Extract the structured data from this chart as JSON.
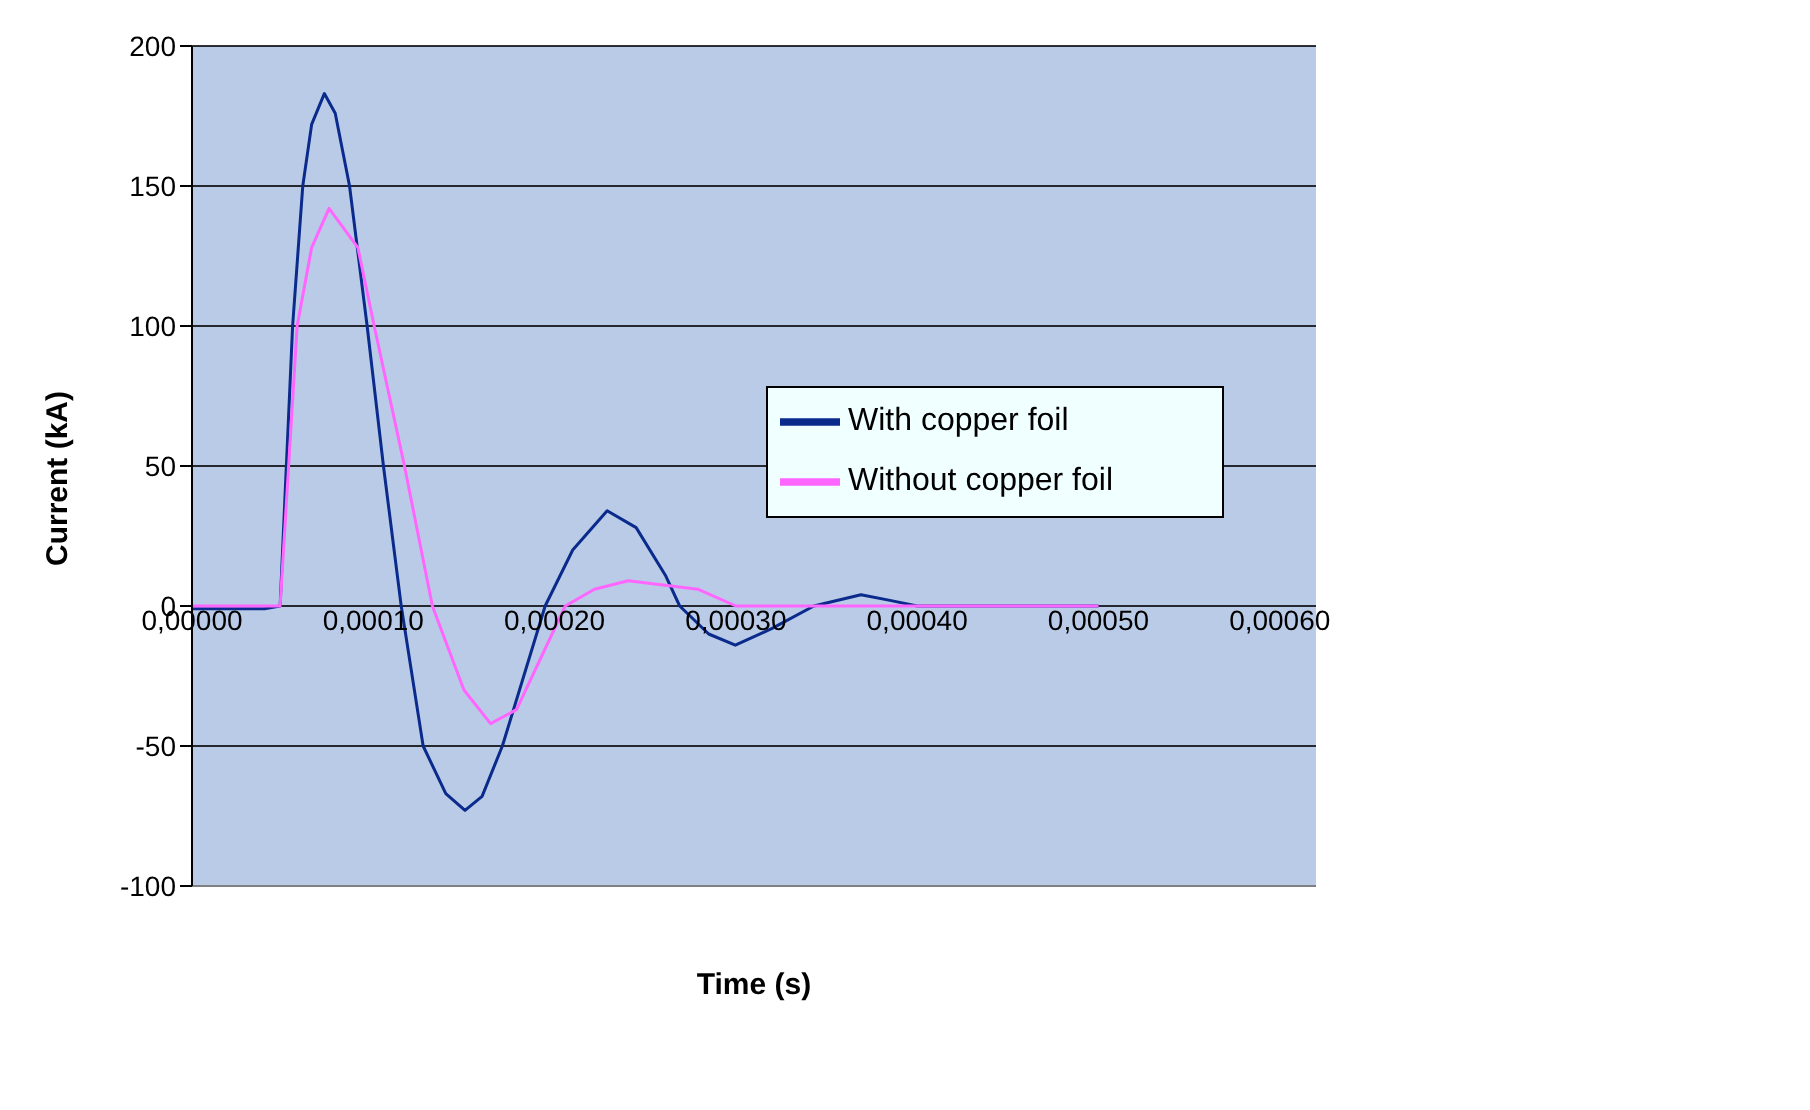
{
  "chart_data": {
    "type": "line",
    "xlabel": "Time (s)",
    "ylabel": "Current (kA)",
    "xlim": [
      0,
      0.00062
    ],
    "ylim": [
      -100,
      200
    ],
    "xticks": [
      {
        "value": 0,
        "label": "0,00000"
      },
      {
        "value": 0.0001,
        "label": "0,00010"
      },
      {
        "value": 0.0002,
        "label": "0,00020"
      },
      {
        "value": 0.0003,
        "label": "0,00030"
      },
      {
        "value": 0.0004,
        "label": "0,00040"
      },
      {
        "value": 0.0005,
        "label": "0,00050"
      },
      {
        "value": 0.0006,
        "label": "0,00060"
      }
    ],
    "yticks": [
      -100,
      -50,
      0,
      50,
      100,
      150,
      200
    ],
    "grid": "y",
    "legend": "right",
    "marker": "none",
    "line_style": "solid",
    "series": [
      {
        "name": "With copper foil",
        "color": "#0a2a8c",
        "x": [
          0,
          2e-05,
          4e-05,
          4.86e-05,
          5.55e-05,
          6.11e-05,
          6.6e-05,
          7.3e-05,
          7.9e-05,
          8.69e-05,
          9.66e-05,
          0.0001056,
          0.0001154,
          0.0001275,
          0.00014,
          0.0001506,
          0.00016,
          0.0001712,
          0.0001948,
          0.00021,
          0.000229,
          0.000245,
          0.0002611,
          0.000269,
          0.000285,
          0.0002997,
          0.00032,
          0.000343,
          0.000369,
          0.000385,
          0.0004,
          0.00045,
          0.0005
        ],
        "values": [
          -1,
          -1,
          -1,
          0,
          100,
          150,
          172,
          183,
          176,
          150,
          100,
          50,
          0,
          -50,
          -67,
          -73,
          -68,
          -50,
          0,
          20,
          34,
          28,
          11,
          0,
          -10,
          -14,
          -8,
          0,
          4,
          2,
          0,
          0,
          0
        ]
      },
      {
        "name": "Without copper foil",
        "color": "#ff66ff",
        "x": [
          0,
          2e-05,
          4e-05,
          4.86e-05,
          5.8e-05,
          6.6e-05,
          7.56e-05,
          9.15e-05,
          0.0001005,
          0.0001172,
          0.0001326,
          0.00015,
          0.0001647,
          0.000179,
          0.0002059,
          0.000222,
          0.0002406,
          0.000279,
          0.0003,
          0.00035,
          0.0004,
          0.00045,
          0.0005
        ],
        "values": [
          0,
          0,
          0,
          0,
          100,
          128,
          142,
          128,
          100,
          50,
          0,
          -30,
          -42,
          -37,
          0,
          6,
          9,
          6,
          0,
          0,
          0,
          0,
          0
        ]
      }
    ]
  }
}
